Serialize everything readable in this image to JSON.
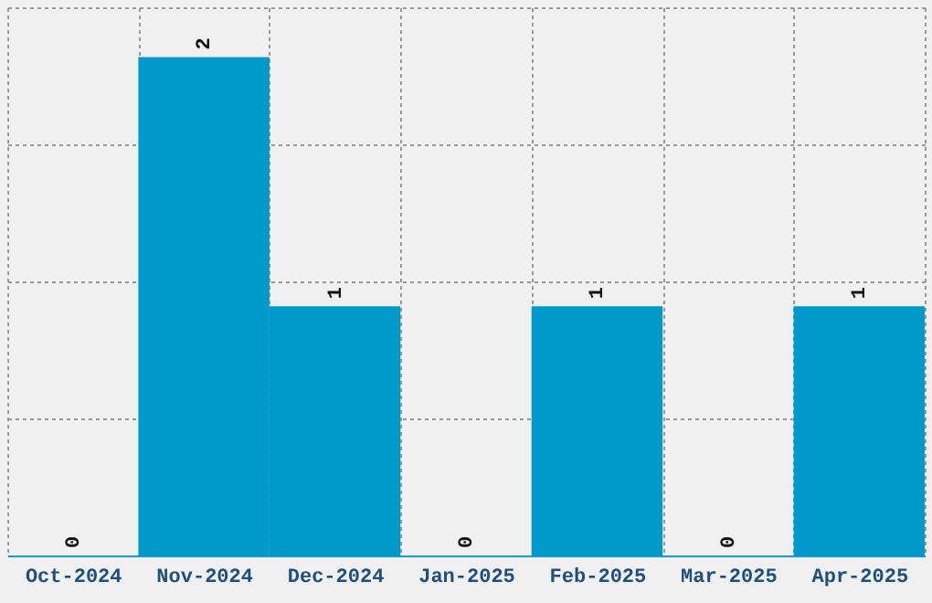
{
  "chart_data": {
    "type": "bar",
    "categories": [
      "Oct-2024",
      "Nov-2024",
      "Dec-2024",
      "Jan-2025",
      "Feb-2025",
      "Mar-2025",
      "Apr-2025"
    ],
    "values": [
      0,
      2,
      1,
      0,
      1,
      0,
      1
    ],
    "color": "#0099cc",
    "data_labels": true,
    "grid": true,
    "tick_labels": "x",
    "ylim": [
      0,
      2.2
    ],
    "yticks": [
      {
        "value": 0,
        "label": null
      },
      {
        "value": 0.55,
        "label": null
      },
      {
        "value": 1.1,
        "label": null
      },
      {
        "value": 1.65,
        "label": null
      },
      {
        "value": 2.2,
        "label": null
      }
    ]
  }
}
